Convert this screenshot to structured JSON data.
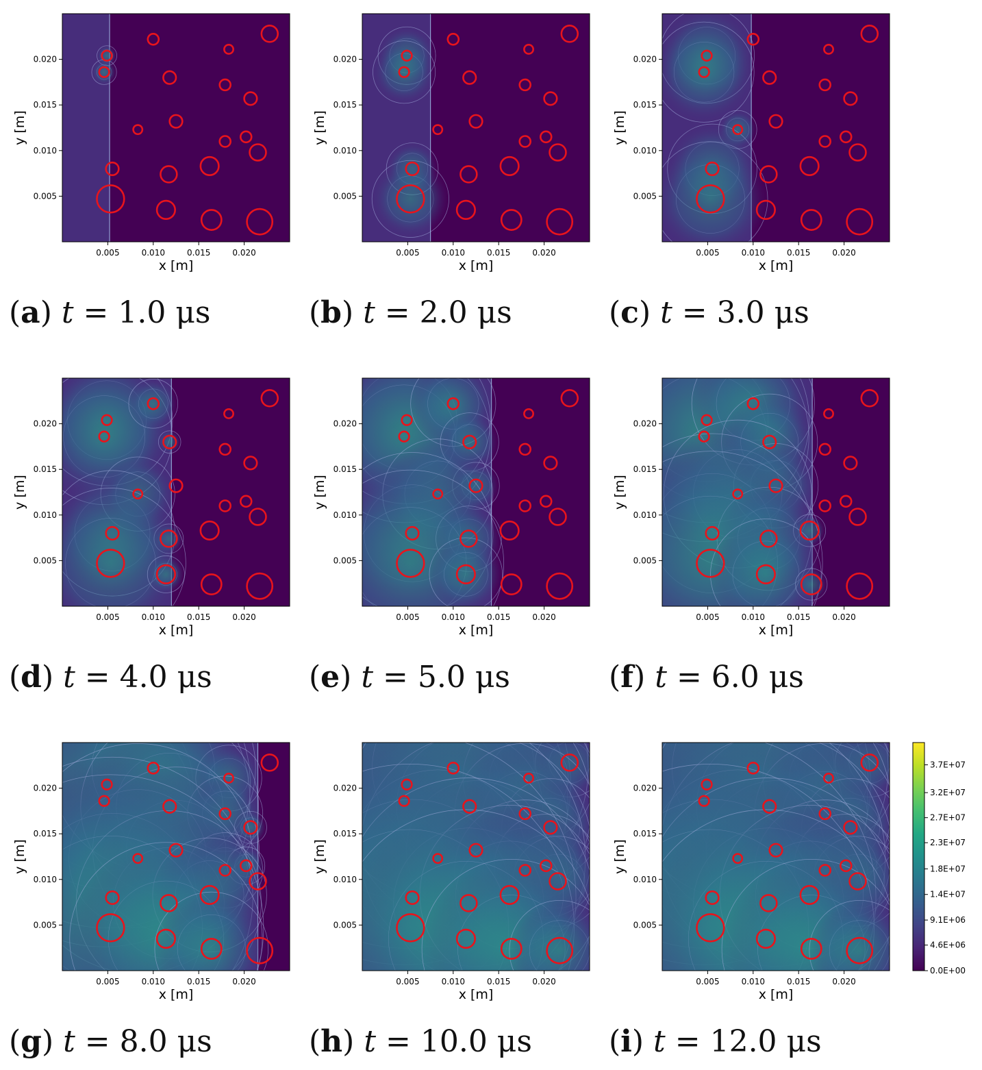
{
  "colorbar": {
    "ticks": [
      "3.7E+07",
      "3.2E+07",
      "2.7E+07",
      "2.3E+07",
      "1.8E+07",
      "1.4E+07",
      "9.1E+06",
      "4.6E+06",
      "0.0E+00"
    ],
    "colors": [
      "#440154",
      "#482475",
      "#414487",
      "#355f8d",
      "#2a788e",
      "#21918c",
      "#22a884",
      "#44bf70",
      "#7ad151",
      "#bddf26",
      "#fde725"
    ]
  },
  "axes": {
    "xlabel": "x [m]",
    "ylabel": "y [m]",
    "xticks": [
      "0.005",
      "0.010",
      "0.015",
      "0.020"
    ],
    "yticks": [
      "0.005",
      "0.010",
      "0.015",
      "0.020"
    ]
  },
  "chart_data": {
    "type": "heatmap",
    "xlim": [
      0,
      0.025
    ],
    "ylim": [
      0,
      0.025
    ],
    "particles": [
      {
        "x": 0.0049,
        "y": 0.0204,
        "r": 0.00055
      },
      {
        "x": 0.0046,
        "y": 0.0186,
        "r": 0.00055
      },
      {
        "x": 0.01,
        "y": 0.0222,
        "r": 0.0006
      },
      {
        "x": 0.0228,
        "y": 0.0228,
        "r": 0.0009
      },
      {
        "x": 0.0183,
        "y": 0.0211,
        "r": 0.0005
      },
      {
        "x": 0.0118,
        "y": 0.018,
        "r": 0.0007
      },
      {
        "x": 0.0179,
        "y": 0.0172,
        "r": 0.0006
      },
      {
        "x": 0.0207,
        "y": 0.0157,
        "r": 0.0007
      },
      {
        "x": 0.0125,
        "y": 0.0132,
        "r": 0.0007
      },
      {
        "x": 0.0083,
        "y": 0.0123,
        "r": 0.0005
      },
      {
        "x": 0.0179,
        "y": 0.011,
        "r": 0.0006
      },
      {
        "x": 0.0202,
        "y": 0.0115,
        "r": 0.0006
      },
      {
        "x": 0.0215,
        "y": 0.0098,
        "r": 0.0009
      },
      {
        "x": 0.0055,
        "y": 0.008,
        "r": 0.0007
      },
      {
        "x": 0.0117,
        "y": 0.0074,
        "r": 0.0009
      },
      {
        "x": 0.0162,
        "y": 0.0083,
        "r": 0.001
      },
      {
        "x": 0.0053,
        "y": 0.0047,
        "r": 0.0015
      },
      {
        "x": 0.0114,
        "y": 0.0035,
        "r": 0.001
      },
      {
        "x": 0.0164,
        "y": 0.0024,
        "r": 0.0011
      },
      {
        "x": 0.0217,
        "y": 0.0022,
        "r": 0.0014
      }
    ],
    "panels": [
      {
        "label": "a",
        "time": "1.0",
        "front": 0.0052
      },
      {
        "label": "b",
        "time": "2.0",
        "front": 0.0075
      },
      {
        "label": "c",
        "time": "3.0",
        "front": 0.0098
      },
      {
        "label": "d",
        "time": "4.0",
        "front": 0.012
      },
      {
        "label": "e",
        "time": "5.0",
        "front": 0.0142
      },
      {
        "label": "f",
        "time": "6.0",
        "front": 0.0165
      },
      {
        "label": "g",
        "time": "8.0",
        "front": 0.0215
      },
      {
        "label": "h",
        "time": "10.0",
        "front": 0.0255
      },
      {
        "label": "i",
        "time": "12.0",
        "front": 0.0255
      }
    ],
    "caption_var": "t",
    "caption_eq": "=",
    "caption_unit": "μs",
    "colormap": "viridis",
    "colorbar_range": [
      0,
      41000000
    ]
  }
}
